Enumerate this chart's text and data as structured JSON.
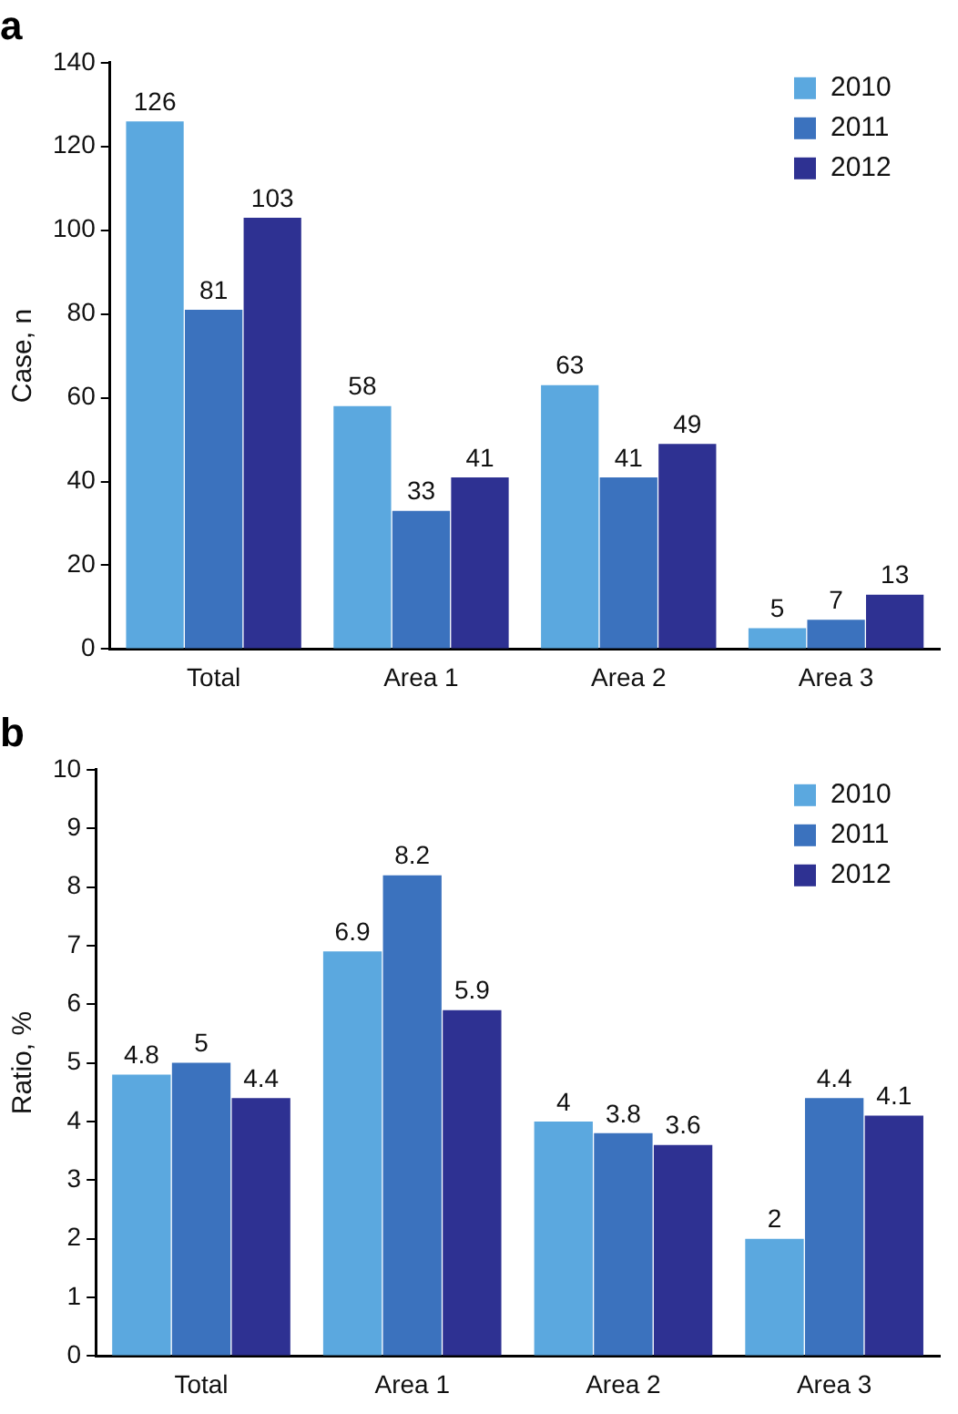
{
  "chart_data": [
    {
      "type": "bar",
      "title": "a",
      "ylabel": "Case, n",
      "categories": [
        "Total",
        "Area 1",
        "Area 2",
        "Area 3"
      ],
      "series": [
        {
          "name": "2010",
          "color": "#5ba8df",
          "values": [
            126,
            58,
            63,
            5
          ]
        },
        {
          "name": "2011",
          "color": "#3b72be",
          "values": [
            81,
            33,
            41,
            7
          ]
        },
        {
          "name": "2012",
          "color": "#2e3192",
          "values": [
            103,
            41,
            49,
            13
          ]
        }
      ],
      "ylim": [
        0,
        140
      ],
      "yticks": [
        0,
        20,
        40,
        60,
        80,
        100,
        120,
        140
      ],
      "grid": false,
      "legend": "top right",
      "data_labels": true
    },
    {
      "type": "bar",
      "title": "b",
      "ylabel": "Ratio, %",
      "categories": [
        "Total",
        "Area 1",
        "Area 2",
        "Area 3"
      ],
      "series": [
        {
          "name": "2010",
          "color": "#5ba8df",
          "values": [
            4.8,
            6.9,
            4,
            2
          ]
        },
        {
          "name": "2011",
          "color": "#3b72be",
          "values": [
            5,
            8.2,
            3.8,
            4.4
          ]
        },
        {
          "name": "2012",
          "color": "#2e3192",
          "values": [
            4.4,
            5.9,
            3.6,
            4.1
          ]
        }
      ],
      "ylim": [
        0,
        10
      ],
      "yticks": [
        0,
        1,
        2,
        3,
        4,
        5,
        6,
        7,
        8,
        9,
        10
      ],
      "grid": false,
      "legend": "top right",
      "data_labels": true
    }
  ]
}
